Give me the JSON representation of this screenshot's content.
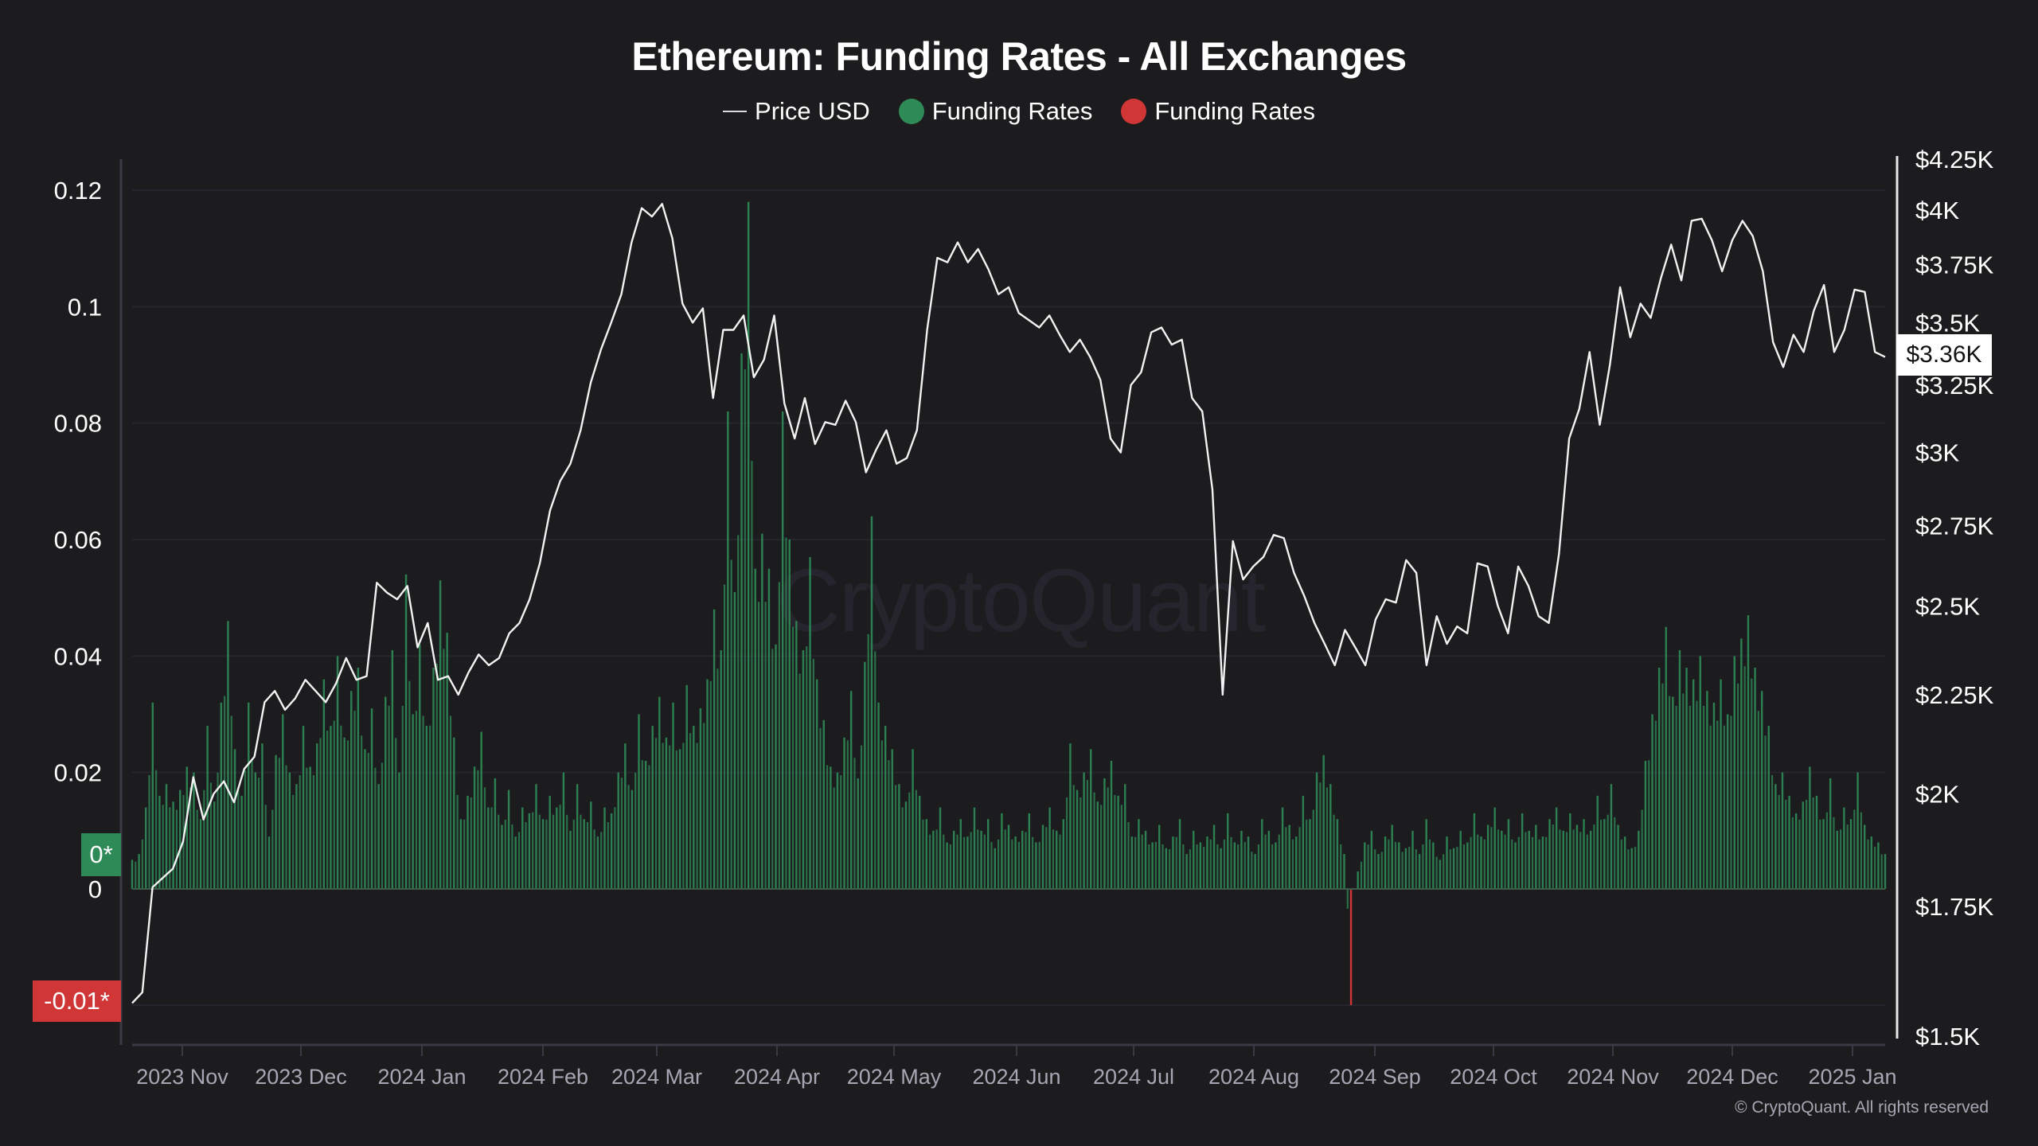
{
  "header": {
    "title": "Ethereum: Funding Rates - All Exchanges",
    "legend": [
      {
        "label": "Price USD",
        "type": "line",
        "color": "#dddddd"
      },
      {
        "label": "Funding Rates",
        "type": "dot",
        "color": "#2e8b57"
      },
      {
        "label": "Funding Rates",
        "type": "dot",
        "color": "#d03636"
      }
    ]
  },
  "watermark": "CryptoQuant",
  "footer": "© CryptoQuant. All rights reserved",
  "badges": {
    "zero": "0*",
    "neg": "-0.01*",
    "price": "$3.36K"
  },
  "colors": {
    "background": "#1c1c1e",
    "positive": "#2e8b57",
    "negative": "#d03636",
    "price_line": "#f2f2f2",
    "grid": "#2a2933"
  },
  "chart_data": {
    "type": "bar+line",
    "title": "Ethereum: Funding Rates - All Exchanges",
    "xlabel": "",
    "ylabel_left": "Funding Rates",
    "ylabel_right": "Price USD",
    "left_axis": {
      "ticks": [
        "0.12",
        "0.1",
        "0.08",
        "0.06",
        "0.04",
        "0.02",
        "0"
      ],
      "values": [
        0.12,
        0.1,
        0.08,
        0.06,
        0.04,
        0.02,
        0
      ],
      "ylim": [
        -0.01,
        0.12
      ]
    },
    "right_axis": {
      "scale": "log",
      "ticks": [
        "$4.25K",
        "$4K",
        "$3.75K",
        "$3.5K",
        "$3.25K",
        "$3K",
        "$2.75K",
        "$2.5K",
        "$2.25K",
        "$2K",
        "$1.75K",
        "$1.5K"
      ],
      "values": [
        4250,
        4000,
        3750,
        3500,
        3250,
        3000,
        2750,
        2500,
        2250,
        2000,
        1750,
        1500
      ]
    },
    "x_ticks": [
      "2023 Nov",
      "2023 Dec",
      "2024 Jan",
      "2024 Feb",
      "2024 Mar",
      "2024 Apr",
      "2024 May",
      "2024 Jun",
      "2024 Jul",
      "2024 Aug",
      "2024 Sep",
      "2024 Oct",
      "2024 Nov",
      "2024 Dec",
      "2025 Jan"
    ],
    "x_range": [
      "2023-10-19",
      "2025-01-08"
    ],
    "legend_position": "top",
    "grid": true,
    "last_price": 3360,
    "funding_series": {
      "name": "Funding Rates",
      "step_days": 2,
      "values": [
        0.005,
        0.006,
        0.014,
        0.032,
        0.016,
        0.018,
        0.015,
        0.017,
        0.021,
        0.02,
        0.012,
        0.028,
        0.015,
        0.032,
        0.046,
        0.024,
        0.016,
        0.032,
        0.02,
        0.025,
        0.009,
        0.023,
        0.03,
        0.02,
        0.018,
        0.028,
        0.021,
        0.025,
        0.036,
        0.028,
        0.04,
        0.026,
        0.034,
        0.038,
        0.024,
        0.031,
        0.018,
        0.033,
        0.041,
        0.02,
        0.054,
        0.03,
        0.042,
        0.028,
        0.038,
        0.053,
        0.044,
        0.026,
        0.012,
        0.016,
        0.021,
        0.027,
        0.014,
        0.019,
        0.011,
        0.017,
        0.009,
        0.014,
        0.013,
        0.018,
        0.012,
        0.016,
        0.014,
        0.02,
        0.01,
        0.018,
        0.012,
        0.015,
        0.009,
        0.014,
        0.013,
        0.02,
        0.025,
        0.017,
        0.03,
        0.022,
        0.028,
        0.033,
        0.026,
        0.032,
        0.024,
        0.035,
        0.028,
        0.031,
        0.036,
        0.048,
        0.041,
        0.082,
        0.051,
        0.092,
        0.118,
        0.055,
        0.061,
        0.055,
        0.042,
        0.082,
        0.06,
        0.046,
        0.041,
        0.057,
        0.036,
        0.029,
        0.021,
        0.02,
        0.026,
        0.034,
        0.019,
        0.039,
        0.064,
        0.032,
        0.028,
        0.024,
        0.018,
        0.015,
        0.024,
        0.016,
        0.012,
        0.01,
        0.014,
        0.008,
        0.01,
        0.012,
        0.009,
        0.014,
        0.01,
        0.012,
        0.007,
        0.013,
        0.011,
        0.009,
        0.01,
        0.013,
        0.008,
        0.011,
        0.014,
        0.01,
        0.012,
        0.025,
        0.017,
        0.02,
        0.024,
        0.015,
        0.019,
        0.022,
        0.016,
        0.018,
        0.009,
        0.012,
        0.01,
        0.008,
        0.011,
        0.007,
        0.009,
        0.012,
        0.006,
        0.01,
        0.008,
        0.009,
        0.011,
        0.007,
        0.013,
        0.008,
        0.01,
        0.009,
        0.006,
        0.012,
        0.01,
        0.008,
        0.014,
        0.011,
        0.009,
        0.016,
        0.012,
        0.02,
        0.023,
        0.018,
        0.012,
        0.006,
        -0.01,
        0.003,
        0.008,
        0.01,
        0.006,
        0.009,
        0.011,
        0.008,
        0.007,
        0.01,
        0.006,
        0.012,
        0.008,
        0.005,
        0.009,
        0.007,
        0.01,
        0.008,
        0.013,
        0.009,
        0.011,
        0.014,
        0.01,
        0.012,
        0.008,
        0.013,
        0.01,
        0.011,
        0.009,
        0.012,
        0.014,
        0.01,
        0.013,
        0.011,
        0.012,
        0.01,
        0.016,
        0.012,
        0.018,
        0.011,
        0.009,
        0.007,
        0.01,
        0.022,
        0.03,
        0.038,
        0.045,
        0.033,
        0.041,
        0.038,
        0.036,
        0.04,
        0.034,
        0.032,
        0.036,
        0.03,
        0.04,
        0.043,
        0.047,
        0.038,
        0.034,
        0.028,
        0.018,
        0.02,
        0.016,
        0.013,
        0.015,
        0.021,
        0.016,
        0.012,
        0.019,
        0.01,
        0.014,
        0.012,
        0.02,
        0.011,
        0.009,
        0.008,
        0.006
      ]
    },
    "price_series": {
      "name": "Price USD",
      "step_days": 4,
      "values": [
        1560,
        1580,
        1790,
        1810,
        1830,
        1890,
        2040,
        1940,
        2000,
        2030,
        1980,
        2060,
        2090,
        2230,
        2260,
        2210,
        2240,
        2290,
        2260,
        2230,
        2280,
        2350,
        2290,
        2300,
        2570,
        2540,
        2520,
        2560,
        2380,
        2450,
        2290,
        2300,
        2250,
        2310,
        2360,
        2330,
        2350,
        2420,
        2450,
        2520,
        2630,
        2800,
        2900,
        2960,
        3080,
        3260,
        3390,
        3500,
        3620,
        3850,
        4010,
        3970,
        4030,
        3870,
        3580,
        3500,
        3560,
        3200,
        3470,
        3470,
        3530,
        3280,
        3350,
        3530,
        3180,
        3050,
        3200,
        3030,
        3110,
        3100,
        3190,
        3110,
        2930,
        3010,
        3080,
        2960,
        2980,
        3080,
        3470,
        3780,
        3760,
        3850,
        3760,
        3820,
        3730,
        3620,
        3650,
        3540,
        3510,
        3480,
        3530,
        3450,
        3380,
        3430,
        3360,
        3270,
        3050,
        3000,
        3250,
        3300,
        3460,
        3480,
        3410,
        3430,
        3200,
        3150,
        2870,
        2250,
        2700,
        2580,
        2620,
        2650,
        2720,
        2710,
        2600,
        2530,
        2450,
        2390,
        2330,
        2430,
        2380,
        2330,
        2460,
        2520,
        2510,
        2640,
        2600,
        2330,
        2470,
        2390,
        2440,
        2420,
        2630,
        2620,
        2500,
        2420,
        2620,
        2560,
        2470,
        2450,
        2660,
        3050,
        3160,
        3380,
        3100,
        3330,
        3650,
        3440,
        3580,
        3520,
        3690,
        3840,
        3680,
        3950,
        3960,
        3860,
        3720,
        3860,
        3950,
        3880,
        3720,
        3420,
        3320,
        3450,
        3380,
        3550,
        3660,
        3380,
        3470,
        3640,
        3630,
        3380,
        3360
      ]
    }
  }
}
